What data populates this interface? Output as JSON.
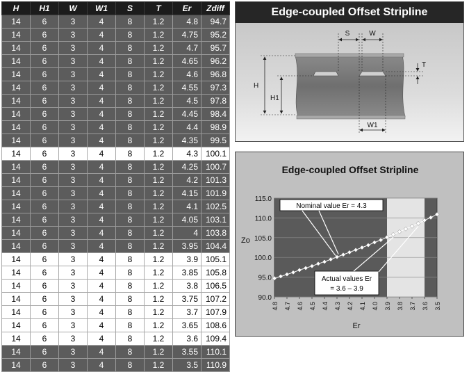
{
  "table": {
    "headers": [
      "H",
      "H1",
      "W",
      "W1",
      "S",
      "T",
      "Er",
      "Zdiff"
    ],
    "rows": [
      {
        "style": "dark",
        "cells": [
          "14",
          "6",
          "3",
          "4",
          "8",
          "1.2",
          "4.8",
          "94.7"
        ]
      },
      {
        "style": "dark",
        "cells": [
          "14",
          "6",
          "3",
          "4",
          "8",
          "1.2",
          "4.75",
          "95.2"
        ]
      },
      {
        "style": "dark",
        "cells": [
          "14",
          "6",
          "3",
          "4",
          "8",
          "1.2",
          "4.7",
          "95.7"
        ]
      },
      {
        "style": "dark",
        "cells": [
          "14",
          "6",
          "3",
          "4",
          "8",
          "1.2",
          "4.65",
          "96.2"
        ]
      },
      {
        "style": "dark",
        "cells": [
          "14",
          "6",
          "3",
          "4",
          "8",
          "1.2",
          "4.6",
          "96.8"
        ]
      },
      {
        "style": "dark",
        "cells": [
          "14",
          "6",
          "3",
          "4",
          "8",
          "1.2",
          "4.55",
          "97.3"
        ]
      },
      {
        "style": "dark",
        "cells": [
          "14",
          "6",
          "3",
          "4",
          "8",
          "1.2",
          "4.5",
          "97.8"
        ]
      },
      {
        "style": "dark",
        "cells": [
          "14",
          "6",
          "3",
          "4",
          "8",
          "1.2",
          "4.45",
          "98.4"
        ]
      },
      {
        "style": "dark",
        "cells": [
          "14",
          "6",
          "3",
          "4",
          "8",
          "1.2",
          "4.4",
          "98.9"
        ]
      },
      {
        "style": "dark",
        "cells": [
          "14",
          "6",
          "3",
          "4",
          "8",
          "1.2",
          "4.35",
          "99.5"
        ]
      },
      {
        "style": "light",
        "cells": [
          "14",
          "6",
          "3",
          "4",
          "8",
          "1.2",
          "4.3",
          "100.1"
        ]
      },
      {
        "style": "dark",
        "cells": [
          "14",
          "6",
          "3",
          "4",
          "8",
          "1.2",
          "4.25",
          "100.7"
        ]
      },
      {
        "style": "dark",
        "cells": [
          "14",
          "6",
          "3",
          "4",
          "8",
          "1.2",
          "4.2",
          "101.3"
        ]
      },
      {
        "style": "dark",
        "cells": [
          "14",
          "6",
          "3",
          "4",
          "8",
          "1.2",
          "4.15",
          "101.9"
        ]
      },
      {
        "style": "dark",
        "cells": [
          "14",
          "6",
          "3",
          "4",
          "8",
          "1.2",
          "4.1",
          "102.5"
        ]
      },
      {
        "style": "dark",
        "cells": [
          "14",
          "6",
          "3",
          "4",
          "8",
          "1.2",
          "4.05",
          "103.1"
        ]
      },
      {
        "style": "dark",
        "cells": [
          "14",
          "6",
          "3",
          "4",
          "8",
          "1.2",
          "4",
          "103.8"
        ]
      },
      {
        "style": "dark",
        "cells": [
          "14",
          "6",
          "3",
          "4",
          "8",
          "1.2",
          "3.95",
          "104.4"
        ]
      },
      {
        "style": "light",
        "cells": [
          "14",
          "6",
          "3",
          "4",
          "8",
          "1.2",
          "3.9",
          "105.1"
        ]
      },
      {
        "style": "light",
        "cells": [
          "14",
          "6",
          "3",
          "4",
          "8",
          "1.2",
          "3.85",
          "105.8"
        ]
      },
      {
        "style": "light",
        "cells": [
          "14",
          "6",
          "3",
          "4",
          "8",
          "1.2",
          "3.8",
          "106.5"
        ]
      },
      {
        "style": "light",
        "cells": [
          "14",
          "6",
          "3",
          "4",
          "8",
          "1.2",
          "3.75",
          "107.2"
        ]
      },
      {
        "style": "light",
        "cells": [
          "14",
          "6",
          "3",
          "4",
          "8",
          "1.2",
          "3.7",
          "107.9"
        ]
      },
      {
        "style": "light",
        "cells": [
          "14",
          "6",
          "3",
          "4",
          "8",
          "1.2",
          "3.65",
          "108.6"
        ]
      },
      {
        "style": "light",
        "cells": [
          "14",
          "6",
          "3",
          "4",
          "8",
          "1.2",
          "3.6",
          "109.4"
        ]
      },
      {
        "style": "dark",
        "cells": [
          "14",
          "6",
          "3",
          "4",
          "8",
          "1.2",
          "3.55",
          "110.1"
        ]
      },
      {
        "style": "dark",
        "cells": [
          "14",
          "6",
          "3",
          "4",
          "8",
          "1.2",
          "3.5",
          "110.9"
        ]
      }
    ]
  },
  "diagram": {
    "title": "Edge-coupled Offset Stripline",
    "labels": {
      "s": "S",
      "w": "W",
      "t": "T",
      "h": "H",
      "h1": "H1",
      "w1": "W1"
    }
  },
  "chart_data": {
    "type": "line",
    "title": "Edge-coupled Offset Stripline",
    "xlabel": "Er",
    "ylabel": "Zo",
    "x_reversed": true,
    "xlim": [
      4.8,
      3.5
    ],
    "ylim": [
      90.0,
      115.0
    ],
    "x_ticks": [
      "4.8",
      "4.7",
      "4.6",
      "4.5",
      "4.4",
      "4.3",
      "4.2",
      "4.1",
      "4.0",
      "3.9",
      "3.8",
      "3.7",
      "3.6",
      "3.5"
    ],
    "y_ticks": [
      "90.0",
      "95.0",
      "100.0",
      "105.0",
      "110.0",
      "115.0"
    ],
    "grid": true,
    "highlight_range": [
      3.9,
      3.6
    ],
    "series": [
      {
        "x": [
          4.8,
          4.75,
          4.7,
          4.65,
          4.6,
          4.55,
          4.5,
          4.45,
          4.4,
          4.35,
          4.3,
          4.25,
          4.2,
          4.15,
          4.1,
          4.05,
          4.0,
          3.95,
          3.9,
          3.85,
          3.8,
          3.75,
          3.7,
          3.65,
          3.6,
          3.55,
          3.5
        ],
        "y": [
          94.7,
          95.2,
          95.7,
          96.2,
          96.8,
          97.3,
          97.8,
          98.4,
          98.9,
          99.5,
          100.1,
          100.7,
          101.3,
          101.9,
          102.5,
          103.1,
          103.8,
          104.4,
          105.1,
          105.8,
          106.5,
          107.2,
          107.9,
          108.6,
          109.4,
          110.1,
          110.9
        ]
      }
    ],
    "annotations": [
      {
        "text": "Nominal value Er = 4.3"
      },
      {
        "text_line1": "Actual values Er",
        "text_line2": "= 3.6 – 3.9"
      }
    ],
    "colors": {
      "plot_bg": "#5a5a5a",
      "highlight": "#e4e4e4",
      "marker": "#ffffff"
    }
  }
}
